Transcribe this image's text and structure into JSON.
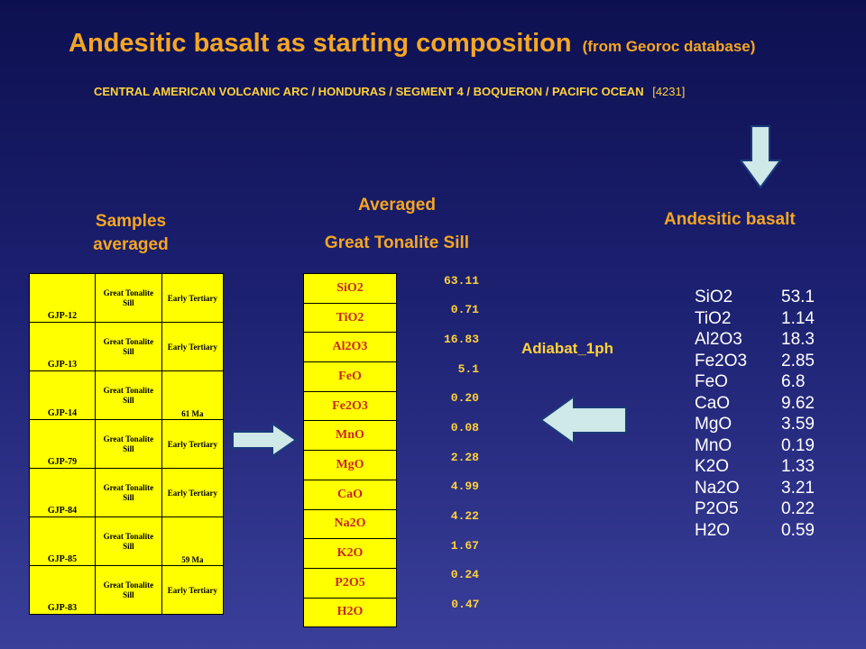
{
  "title": {
    "main": "Andesitic basalt as starting composition",
    "source": "(from Georoc database)"
  },
  "subtitle": {
    "text": "CENTRAL AMERICAN VOLCANIC ARC / HONDURAS / SEGMENT 4 / BOQUERON / PACIFIC OCEAN",
    "id": "[4231]"
  },
  "headings": {
    "samples_line1": "Samples",
    "samples_line2": "averaged",
    "averaged_line1": "Averaged",
    "averaged_line2": "Great Tonalite Sill",
    "andesitic": "Andesitic basalt",
    "adiabat": "Adiabat_1ph"
  },
  "samples": [
    {
      "id": "GJP-12",
      "unit": "Great Tonalite Sill",
      "age": "Early Tertiary"
    },
    {
      "id": "GJP-13",
      "unit": "Great Tonalite Sill",
      "age": "Early Tertiary"
    },
    {
      "id": "GJP-14",
      "unit": "Great Tonalite Sill",
      "age": "61 Ma"
    },
    {
      "id": "GJP-79",
      "unit": "Great Tonalite Sill",
      "age": "Early Tertiary"
    },
    {
      "id": "GJP-84",
      "unit": "Great Tonalite Sill",
      "age": "Early Tertiary"
    },
    {
      "id": "GJP-85",
      "unit": "Great Tonalite Sill",
      "age": "59 Ma"
    },
    {
      "id": "GJP-83",
      "unit": "Great Tonalite Sill",
      "age": "Early Tertiary"
    }
  ],
  "averaged": [
    {
      "oxide": "SiO2",
      "value": "63.11"
    },
    {
      "oxide": "TiO2",
      "value": "0.71"
    },
    {
      "oxide": "Al2O3",
      "value": "16.83"
    },
    {
      "oxide": "FeO",
      "value": "5.1"
    },
    {
      "oxide": "Fe2O3",
      "value": "0.20"
    },
    {
      "oxide": "MnO",
      "value": "0.08"
    },
    {
      "oxide": "MgO",
      "value": "2.28"
    },
    {
      "oxide": "CaO",
      "value": "4.99"
    },
    {
      "oxide": "Na2O",
      "value": "4.22"
    },
    {
      "oxide": "K2O",
      "value": "1.67"
    },
    {
      "oxide": "P2O5",
      "value": "0.24"
    },
    {
      "oxide": "H2O",
      "value": "0.47"
    }
  ],
  "andesitic_basalt": [
    {
      "oxide": "SiO2",
      "value": "53.1"
    },
    {
      "oxide": "TiO2",
      "value": "1.14"
    },
    {
      "oxide": "Al2O3",
      "value": "18.3"
    },
    {
      "oxide": "Fe2O3",
      "value": "2.85"
    },
    {
      "oxide": "FeO",
      "value": "6.8"
    },
    {
      "oxide": "CaO",
      "value": "9.62"
    },
    {
      "oxide": "MgO",
      "value": "3.59"
    },
    {
      "oxide": "MnO",
      "value": "0.19"
    },
    {
      "oxide": "K2O",
      "value": "1.33"
    },
    {
      "oxide": "Na2O",
      "value": "3.21"
    },
    {
      "oxide": "P2O5",
      "value": "0.22"
    },
    {
      "oxide": "H2O",
      "value": "0.59"
    }
  ],
  "colors": {
    "heading": "#f5a623",
    "highlight": "#ffd23a",
    "table_fill": "#ffff00",
    "oxide_text": "#c62828",
    "arrow_fill": "#cfe8e8"
  }
}
